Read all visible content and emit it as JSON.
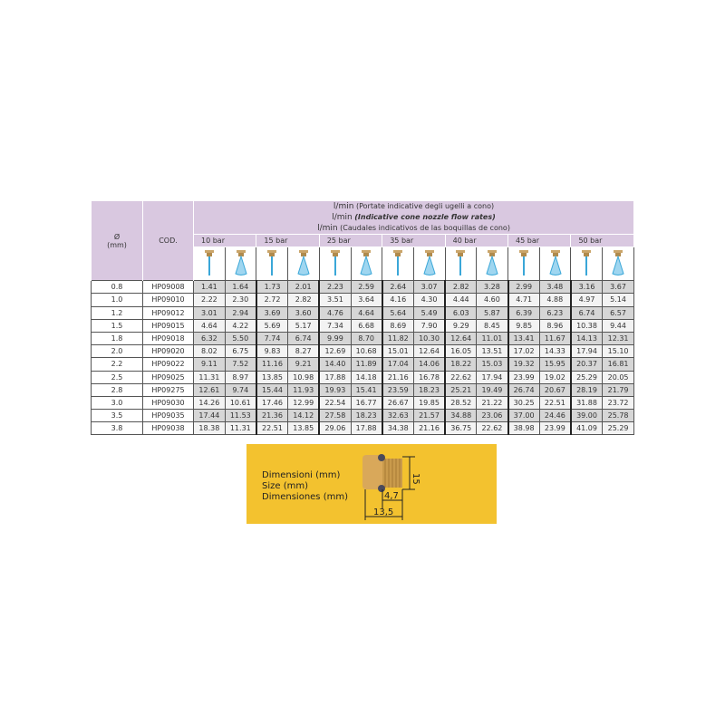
{
  "header": {
    "diameter_label": "Ø",
    "diameter_unit": "(mm)",
    "code_label": "COD.",
    "line1_unit": "l/min",
    "line1_text": "(Portate indicative degli ugelli a cono)",
    "line2_unit": "l/min",
    "line2_text": "(Indicative cone nozzle flow rates)",
    "line3_unit": "l/min",
    "line3_text": "(Caudales indicativos de las boquillas de cono)",
    "pressures": [
      "10 bar",
      "15 bar",
      "25 bar",
      "35 bar",
      "40 bar",
      "45 bar",
      "50 bar"
    ],
    "icons": [
      "narrow-spray-nozzle-icon",
      "wide-cone-nozzle-icon"
    ]
  },
  "rows": [
    {
      "d": "0.8",
      "code": "HP09008",
      "v": [
        "1.41",
        "1.64",
        "1.73",
        "2.01",
        "2.23",
        "2.59",
        "2.64",
        "3.07",
        "2.82",
        "3.28",
        "2.99",
        "3.48",
        "3.16",
        "3.67"
      ]
    },
    {
      "d": "1.0",
      "code": "HP09010",
      "v": [
        "2.22",
        "2.30",
        "2.72",
        "2.82",
        "3.51",
        "3.64",
        "4.16",
        "4.30",
        "4.44",
        "4.60",
        "4.71",
        "4.88",
        "4.97",
        "5.14"
      ]
    },
    {
      "d": "1.2",
      "code": "HP09012",
      "v": [
        "3.01",
        "2.94",
        "3.69",
        "3.60",
        "4.76",
        "4.64",
        "5.64",
        "5.49",
        "6.03",
        "5.87",
        "6.39",
        "6.23",
        "6.74",
        "6.57"
      ]
    },
    {
      "d": "1.5",
      "code": "HP09015",
      "v": [
        "4.64",
        "4.22",
        "5.69",
        "5.17",
        "7.34",
        "6.68",
        "8.69",
        "7.90",
        "9.29",
        "8.45",
        "9.85",
        "8.96",
        "10.38",
        "9.44"
      ]
    },
    {
      "d": "1.8",
      "code": "HP09018",
      "v": [
        "6.32",
        "5.50",
        "7.74",
        "6.74",
        "9.99",
        "8.70",
        "11.82",
        "10.30",
        "12.64",
        "11.01",
        "13.41",
        "11.67",
        "14.13",
        "12.31"
      ]
    },
    {
      "d": "2.0",
      "code": "HP09020",
      "v": [
        "8.02",
        "6.75",
        "9.83",
        "8.27",
        "12.69",
        "10.68",
        "15.01",
        "12.64",
        "16.05",
        "13.51",
        "17.02",
        "14.33",
        "17.94",
        "15.10"
      ]
    },
    {
      "d": "2.2",
      "code": "HP09022",
      "v": [
        "9.11",
        "7.52",
        "11.16",
        "9.21",
        "14.40",
        "11.89",
        "17.04",
        "14.06",
        "18.22",
        "15.03",
        "19.32",
        "15.95",
        "20.37",
        "16.81"
      ]
    },
    {
      "d": "2.5",
      "code": "HP09025",
      "v": [
        "11.31",
        "8.97",
        "13.85",
        "10.98",
        "17.88",
        "14.18",
        "21.16",
        "16.78",
        "22.62",
        "17.94",
        "23.99",
        "19.02",
        "25.29",
        "20.05"
      ]
    },
    {
      "d": "2.8",
      "code": "HP09275",
      "v": [
        "12.61",
        "9.74",
        "15.44",
        "11.93",
        "19.93",
        "15.41",
        "23.59",
        "18.23",
        "25.21",
        "19.49",
        "26.74",
        "20.67",
        "28.19",
        "21.79"
      ]
    },
    {
      "d": "3.0",
      "code": "HP09030",
      "v": [
        "14.26",
        "10.61",
        "17.46",
        "12.99",
        "22.54",
        "16.77",
        "26.67",
        "19.85",
        "28.52",
        "21.22",
        "30.25",
        "22.51",
        "31.88",
        "23.72"
      ]
    },
    {
      "d": "3.5",
      "code": "HP09035",
      "v": [
        "17.44",
        "11.53",
        "21.36",
        "14.12",
        "27.58",
        "18.23",
        "32.63",
        "21.57",
        "34.88",
        "23.06",
        "37.00",
        "24.46",
        "39.00",
        "25.78"
      ]
    },
    {
      "d": "3.8",
      "code": "HP09038",
      "v": [
        "18.38",
        "11.31",
        "22.51",
        "13.85",
        "29.06",
        "17.88",
        "34.38",
        "21.16",
        "36.75",
        "22.62",
        "38.98",
        "23.99",
        "41.09",
        "25.29"
      ]
    }
  ],
  "dimensions": {
    "label_it": "Dimensioni (mm)",
    "label_en": "Size (mm)",
    "label_es": "Dimensiones (mm)",
    "height": "15",
    "thread_length": "4,7",
    "total_length": "13,5"
  },
  "colors": {
    "header_bg": "#d9c8e0",
    "dim_box_bg": "#f3c22f",
    "row_gray": "#d6d6d6"
  }
}
